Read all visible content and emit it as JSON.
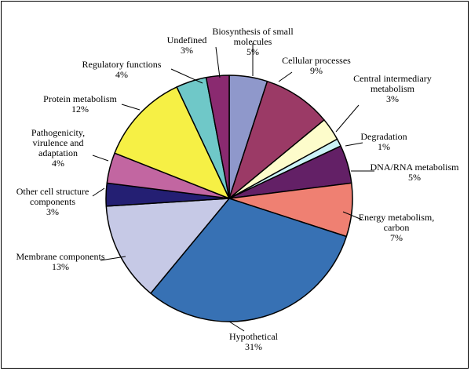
{
  "chart_data": {
    "type": "pie",
    "start_angle_deg": 0,
    "direction": "clockwise",
    "slices": [
      {
        "label": "Biosynthesis of small molecules",
        "label_lines": [
          "Biosynthesis of small",
          "molecules",
          "5%"
        ],
        "value": 5,
        "color": "#8f98cb"
      },
      {
        "label": "Cellular processes",
        "label_lines": [
          "Cellular processes",
          "9%"
        ],
        "value": 9,
        "color": "#9b3a66"
      },
      {
        "label": "Central intermediary metabolism",
        "label_lines": [
          "Central intermediary",
          "metabolism",
          "3%"
        ],
        "value": 3,
        "color": "#fdfccb"
      },
      {
        "label": "Degradation",
        "label_lines": [
          "Degradation",
          "1%"
        ],
        "value": 1,
        "color": "#cbf2f7"
      },
      {
        "label": "DNA/RNA metabolism",
        "label_lines": [
          "DNA/RNA metabolism",
          "5%"
        ],
        "value": 5,
        "color": "#632066"
      },
      {
        "label": "Energy metabolism, carbon",
        "label_lines": [
          "Energy metabolism,",
          "carbon",
          "7%"
        ],
        "value": 7,
        "color": "#ef8072"
      },
      {
        "label": "Hypothetical",
        "label_lines": [
          "Hypothetical",
          "31%"
        ],
        "value": 31,
        "color": "#3771b4"
      },
      {
        "label": "Membrane components",
        "label_lines": [
          "Membrane components",
          "13%"
        ],
        "value": 13,
        "color": "#c6c9e6"
      },
      {
        "label": "Other cell structure components",
        "label_lines": [
          "Other cell  structure",
          "components",
          "3%"
        ],
        "value": 3,
        "color": "#241f73"
      },
      {
        "label": "Pathogenicity, virulence and adaptation",
        "label_lines": [
          "Pathogenicity,",
          "virulence and",
          "adaptation",
          "4%"
        ],
        "value": 4,
        "color": "#c266a1"
      },
      {
        "label": "Protein metabolism",
        "label_lines": [
          "Protein metabolism",
          "12%"
        ],
        "value": 12,
        "color": "#f6f045"
      },
      {
        "label": "Regulatory functions",
        "label_lines": [
          "Regulatory functions",
          "4%"
        ],
        "value": 4,
        "color": "#6fc8c8"
      },
      {
        "label": "Undefined",
        "label_lines": [
          "Undefined",
          "3%"
        ],
        "value": 3,
        "color": "#8a2a70"
      }
    ]
  }
}
